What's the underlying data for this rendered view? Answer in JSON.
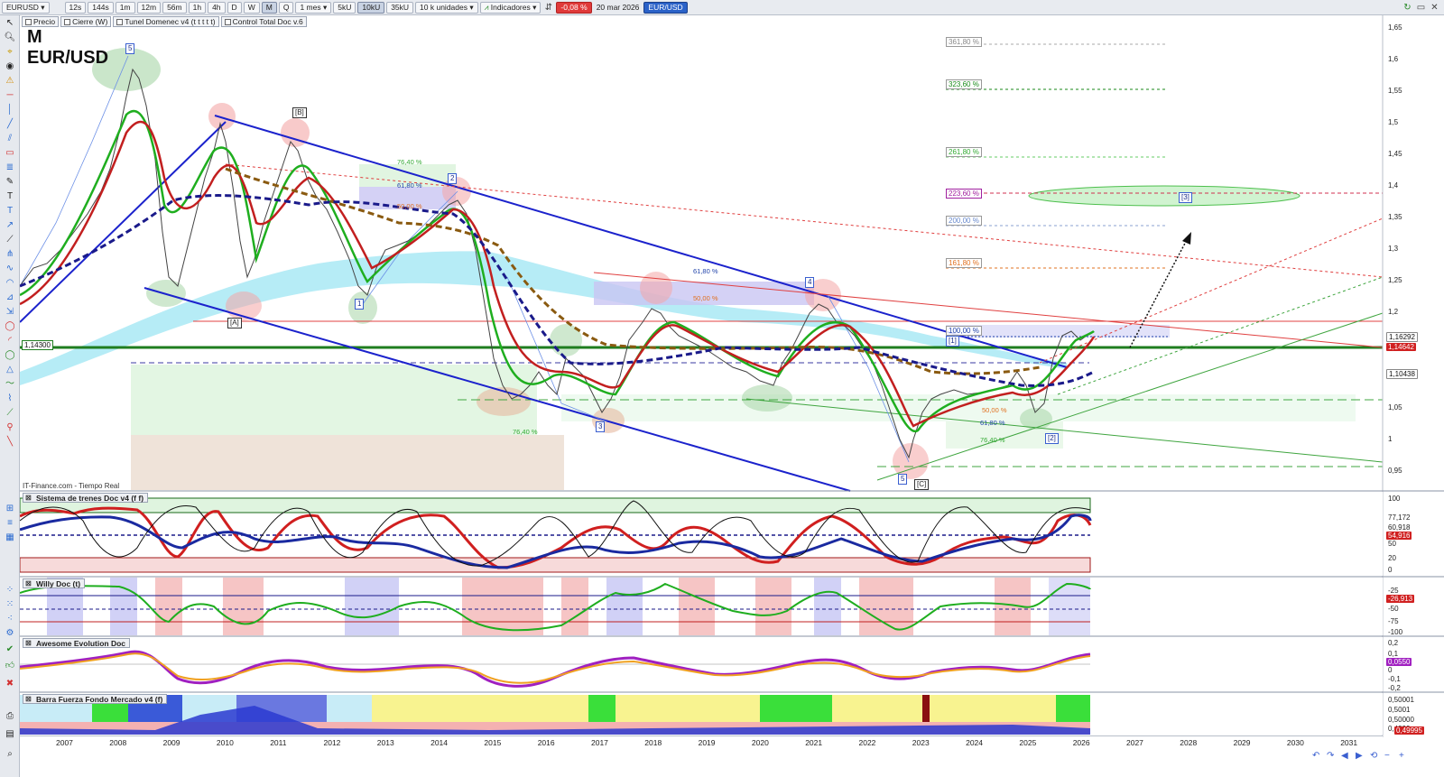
{
  "toolbar": {
    "symbol": "EURUSD",
    "timeframes": [
      "12s",
      "144s",
      "1m",
      "12m",
      "56m",
      "1h",
      "4h",
      "D",
      "W",
      "M",
      "Q"
    ],
    "active_timeframe": "M",
    "period": "1 mes",
    "volume_buttons": [
      "5kU",
      "10kU",
      "35kU"
    ],
    "active_volume": "10kU",
    "units": "10 k unidades",
    "indicators_label": "Indicadores",
    "change": "-0,08 %",
    "date": "20 mar 2026",
    "pair": "EUR/USD"
  },
  "legend": [
    "Precio",
    "Cierre (W)",
    "Tunel Domenec v4 (t t t t t)",
    "Control Total Doc v.6"
  ],
  "chart": {
    "period_label": "M",
    "pair_label": "EUR/USD",
    "source": "IT-Finance.com - Tiempo Real",
    "support_level": "1,14300",
    "price_axis": [
      "1,65",
      "1,6",
      "1,55",
      "1,5",
      "1,45",
      "1,4",
      "1,35",
      "1,3",
      "1,25",
      "1,2",
      "1,05",
      "1",
      "0,95"
    ],
    "price_tags": [
      {
        "text": "1,16292",
        "color": "#ffffff"
      },
      {
        "text": "1,14642",
        "color": "#d02020"
      },
      {
        "text": "1,10438",
        "color": "#ffffff"
      }
    ],
    "fib_right": [
      {
        "text": "361,80 %",
        "color": "#888888"
      },
      {
        "text": "323,60 %",
        "color": "#1a8a1a"
      },
      {
        "text": "261,80 %",
        "color": "#66cc66"
      },
      {
        "text": "223,60 %",
        "color": "#a020a0"
      },
      {
        "text": "200,00 %",
        "color": "#6688cc"
      },
      {
        "text": "161,80 %",
        "color": "#e07020"
      },
      {
        "text": "100,00 %",
        "color": "#2244aa"
      },
      {
        "text": "50,00 %",
        "color": "#e07020"
      },
      {
        "text": "61,80 %",
        "color": "#2244aa"
      },
      {
        "text": "76,40 %",
        "color": "#33aa33"
      }
    ],
    "fib_left": [
      "76,40 %",
      "61,80 %",
      "50,00 %",
      "61,80 %",
      "50,00 %",
      "76,40 %"
    ],
    "waves": [
      "5",
      "[B]",
      "2",
      "[A]",
      "1",
      "3",
      "4",
      "5",
      "[C]",
      "[1]",
      "[2]",
      "[3]"
    ]
  },
  "panels": [
    {
      "title": "Sistema de trenes Doc v4 (f f)",
      "axis": [
        "100",
        "77,172",
        "60,918",
        "54,916",
        "50",
        "20",
        "0"
      ]
    },
    {
      "title": "Willy Doc (t)",
      "axis": [
        "-25",
        "-26,913",
        "-50",
        "-75",
        "-100"
      ]
    },
    {
      "title": "Awesome Evolution Doc",
      "axis": [
        "0,2",
        "0,1",
        "0,0550",
        "0",
        "-0,1",
        "-0,2"
      ]
    },
    {
      "title": "Barra Fuerza Fondo Mercado v4 (f)",
      "axis": [
        "0,50001",
        "0,5001",
        "0,50000",
        "0,4999",
        "0,49995"
      ]
    }
  ],
  "years": [
    "2007",
    "2008",
    "2009",
    "2010",
    "2011",
    "2012",
    "2013",
    "2014",
    "2015",
    "2016",
    "2017",
    "2018",
    "2019",
    "2020",
    "2021",
    "2022",
    "2023",
    "2024",
    "2025",
    "2026",
    "2027",
    "2028",
    "2029",
    "2030",
    "2031"
  ]
}
